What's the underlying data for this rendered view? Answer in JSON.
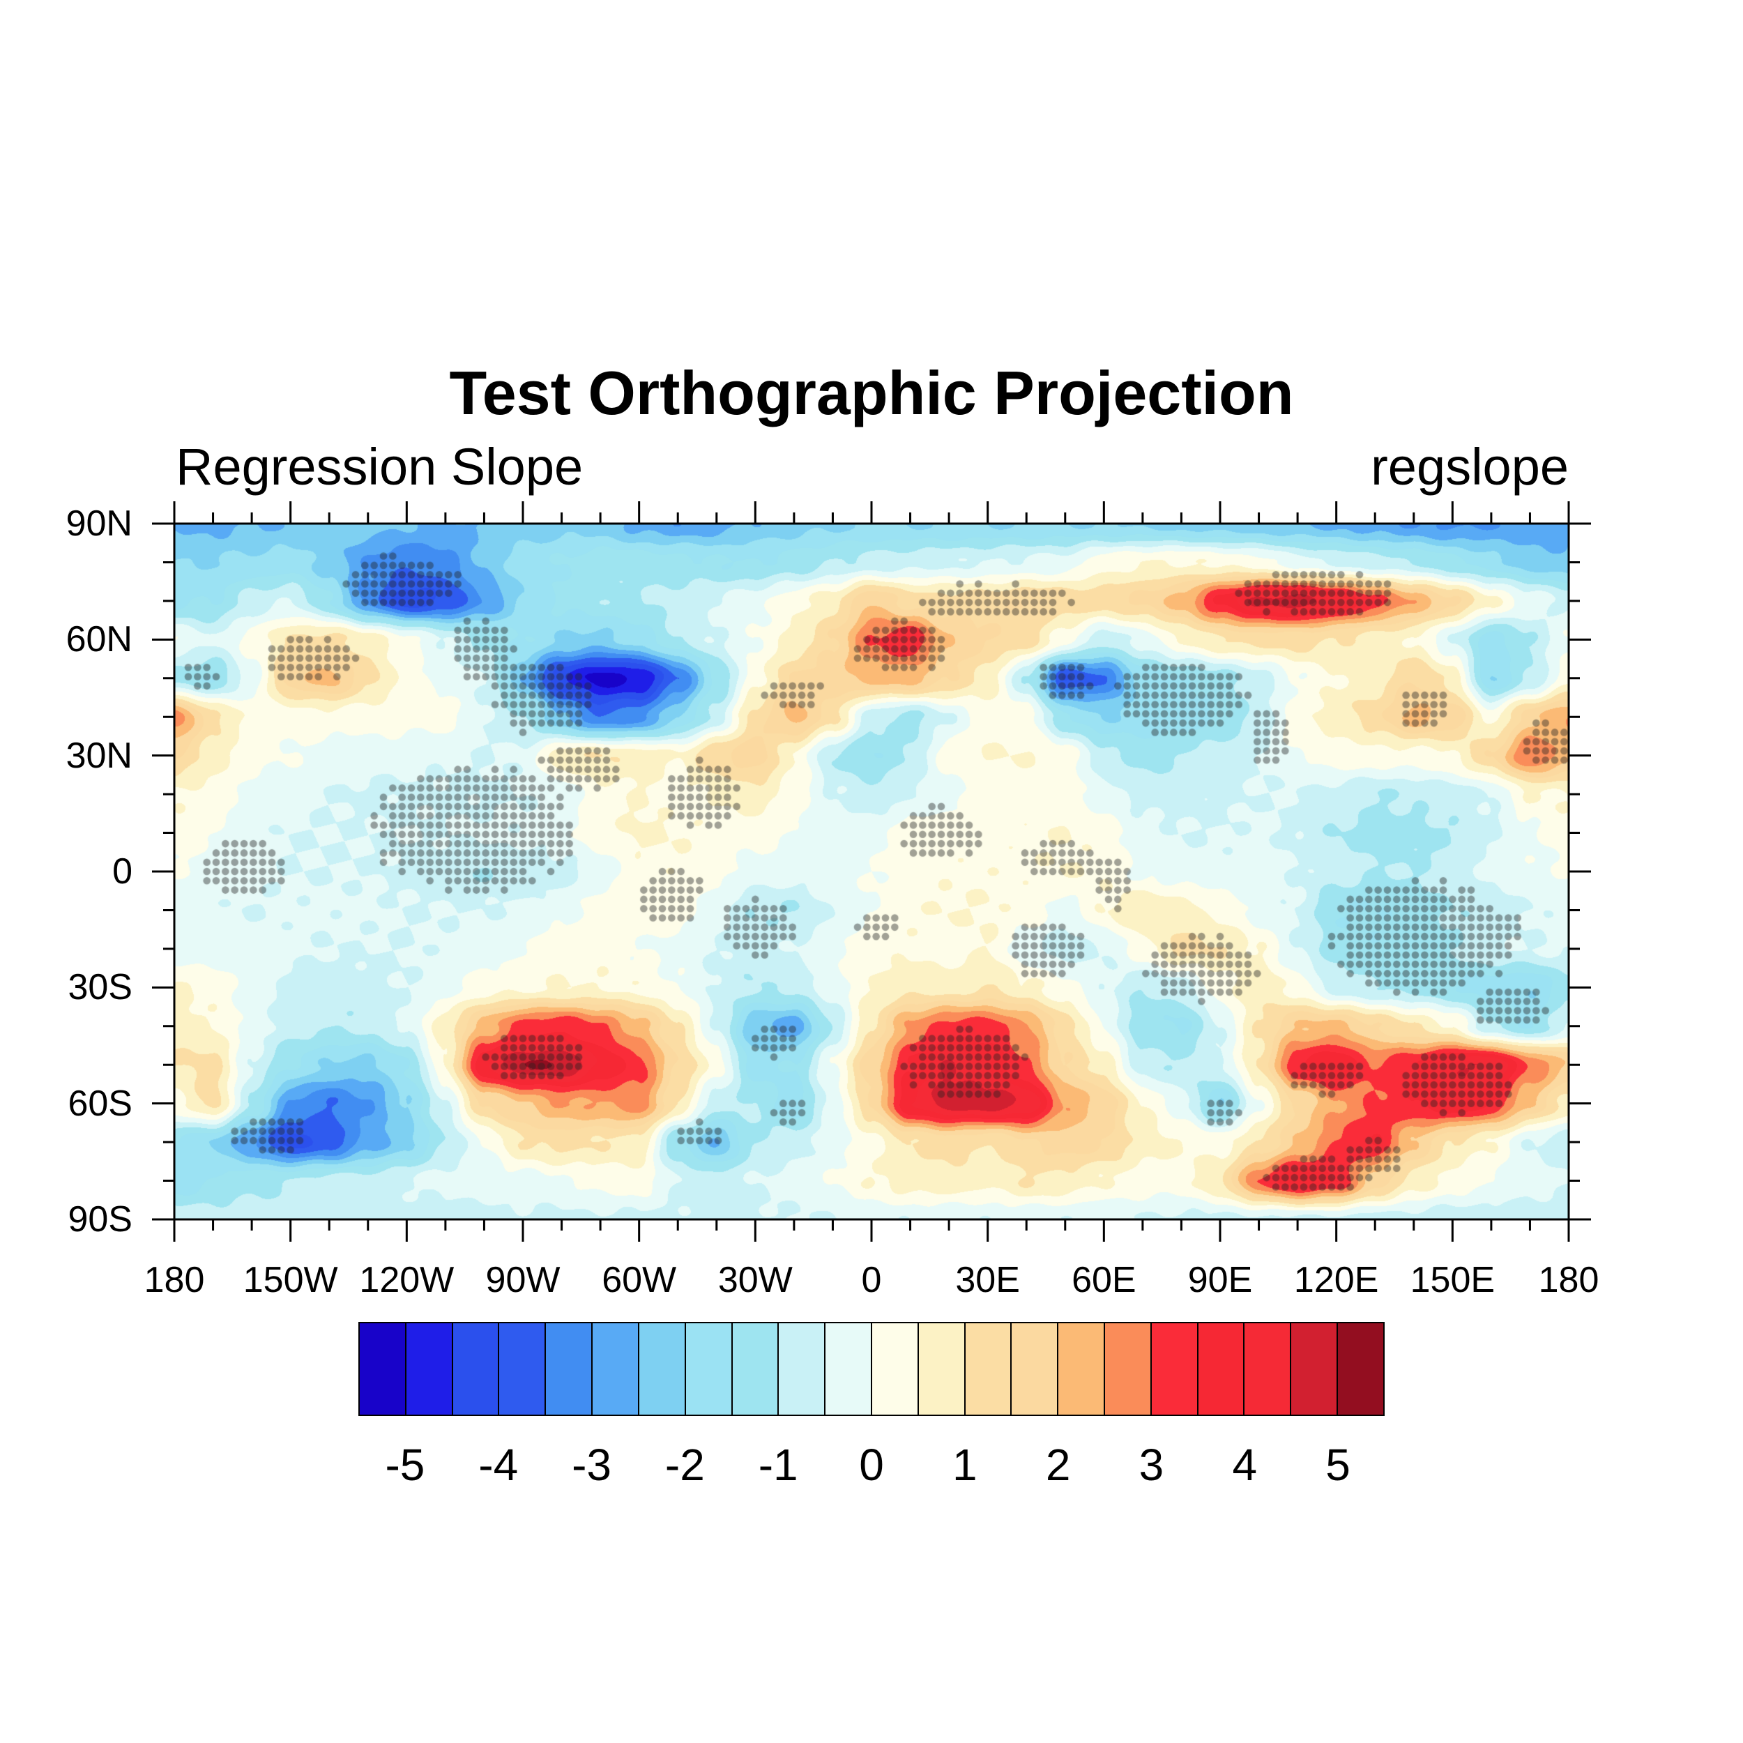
{
  "title": "Test Orthographic Projection",
  "subtitle_left": "Regression Slope",
  "subtitle_right": "regslope",
  "chart_data": {
    "type": "heatmap",
    "title": "Test Orthographic Projection",
    "field_name": "Regression Slope",
    "variable": "regslope",
    "projection_note": "cylindrical lat-lon plot of regression slope with stippling for significance",
    "x_axis": {
      "tick_labels": [
        "180",
        "150W",
        "120W",
        "90W",
        "60W",
        "30W",
        "0",
        "30E",
        "60E",
        "90E",
        "120E",
        "150E",
        "180"
      ],
      "tick_lons": [
        -180,
        -150,
        -120,
        -90,
        -60,
        -30,
        0,
        30,
        60,
        90,
        120,
        150,
        180
      ],
      "minor_step_deg": 10
    },
    "y_axis": {
      "tick_labels": [
        "90N",
        "60N",
        "30N",
        "0",
        "30S",
        "60S",
        "90S"
      ],
      "tick_lats": [
        90,
        60,
        30,
        0,
        -30,
        -60,
        -90
      ],
      "minor_step_deg": 10
    },
    "colorbar": {
      "labels": [
        "-5",
        "-4",
        "-3",
        "-2",
        "-1",
        "0",
        "1",
        "2",
        "3",
        "4",
        "5"
      ],
      "levels": [
        -5,
        -4.5,
        -4,
        -3.5,
        -3,
        -2.5,
        -2,
        -1.5,
        -1,
        -0.5,
        0,
        0.5,
        1,
        1.5,
        2,
        2.5,
        3,
        3.5,
        4,
        4.5,
        5
      ],
      "colors": [
        "#1803C9",
        "#1F1EE8",
        "#2B50ED",
        "#2F5BEF",
        "#418DF2",
        "#58AAF5",
        "#7ED0F2",
        "#9BE2F3",
        "#9EE4F0",
        "#C9F1F6",
        "#E7FAF8",
        "#FEFDE9",
        "#FCF2C5",
        "#FBDDA4",
        "#FBD9A0",
        "#FBBA75",
        "#FA8C59",
        "#FA2C39",
        "#F62834",
        "#F52A36",
        "#D22030",
        "#930E20"
      ]
    },
    "grid": {
      "lons": [
        -180,
        -170,
        -160,
        -150,
        -140,
        -130,
        -120,
        -110,
        -100,
        -90,
        -80,
        -70,
        -60,
        -50,
        -40,
        -30,
        -20,
        -10,
        0,
        10,
        20,
        30,
        40,
        50,
        60,
        70,
        80,
        90,
        100,
        110,
        120,
        130,
        140,
        150,
        160,
        170,
        180
      ],
      "lats": [
        90,
        80,
        70,
        60,
        50,
        40,
        30,
        20,
        10,
        0,
        -10,
        -20,
        -30,
        -40,
        -50,
        -60,
        -70,
        -80,
        -90
      ],
      "values": [
        [
          -2.6,
          -2.6,
          -2.5,
          -2.5,
          -2.3,
          -2.3,
          -2.5,
          -2.6,
          -2.5,
          -2.3,
          -2.2,
          -2.3,
          -2.7,
          -2.9,
          -2.7,
          -2.4,
          -2.2,
          -2.1,
          -2.0,
          -2.0,
          -2.0,
          -2.0,
          -2.0,
          -2.0,
          -2.0,
          -2.1,
          -2.2,
          -2.3,
          -2.4,
          -2.5,
          -2.6,
          -2.8,
          -3.0,
          -3.1,
          -3.0,
          -2.9,
          -2.8
        ],
        [
          -2.0,
          -2.0,
          -1.9,
          -1.8,
          -2.2,
          -3.0,
          -3.4,
          -3.2,
          -2.4,
          -1.8,
          -1.5,
          -1.2,
          -1.2,
          -1.3,
          -1.5,
          -1.5,
          -1.3,
          -1.0,
          -0.8,
          -0.7,
          -0.6,
          -0.5,
          -0.4,
          -0.3,
          0.3,
          0.5,
          0.5,
          0.4,
          0.2,
          -0.3,
          -0.6,
          -0.8,
          -1.0,
          -1.4,
          -1.8,
          -2.2,
          -2.4
        ],
        [
          -1.6,
          -1.5,
          -0.8,
          -0.5,
          -1.5,
          -3.2,
          -4.3,
          -4.0,
          -3.0,
          -2.0,
          -1.4,
          -1.1,
          -1.0,
          -0.8,
          -0.5,
          -0.2,
          0.3,
          0.8,
          2.0,
          1.3,
          1.2,
          1.3,
          1.5,
          1.4,
          1.3,
          1.6,
          2.2,
          3.6,
          4.6,
          4.8,
          4.2,
          3.2,
          2.4,
          1.6,
          0.6,
          -0.2,
          -0.6
        ],
        [
          0.0,
          -0.5,
          0.2,
          1.0,
          1.2,
          0.8,
          0.2,
          -0.5,
          -1.2,
          -1.5,
          -2.0,
          -2.2,
          -1.8,
          -1.0,
          -0.5,
          0.0,
          0.6,
          1.5,
          3.0,
          3.5,
          2.0,
          1.5,
          1.3,
          0.2,
          -0.8,
          -0.3,
          0.5,
          1.0,
          1.2,
          1.2,
          1.0,
          0.8,
          0.5,
          -0.5,
          -1.8,
          -1.0,
          0.0
        ],
        [
          -1.2,
          -1.5,
          -0.3,
          1.8,
          2.2,
          1.2,
          0.3,
          -0.2,
          -0.5,
          -2.5,
          -4.5,
          -5.2,
          -5.0,
          -3.5,
          -1.5,
          0.3,
          1.5,
          1.8,
          2.2,
          2.2,
          1.5,
          0.8,
          -1.0,
          -4.0,
          -3.5,
          -1.8,
          -1.5,
          -1.2,
          -0.8,
          0.0,
          0.5,
          0.8,
          1.5,
          0.8,
          -2.0,
          -1.0,
          0.3
        ],
        [
          2.8,
          1.2,
          0.3,
          0.2,
          0.3,
          0.2,
          0.2,
          0.2,
          -0.5,
          -1.0,
          -2.5,
          -3.5,
          -3.2,
          -2.0,
          -0.8,
          1.2,
          2.2,
          1.2,
          -0.8,
          -1.2,
          -0.5,
          0.3,
          0.3,
          -1.5,
          -2.0,
          -1.8,
          -1.8,
          -1.5,
          -0.8,
          0.3,
          0.8,
          1.3,
          2.2,
          1.8,
          0.3,
          1.8,
          2.5
        ],
        [
          1.5,
          0.8,
          0.2,
          0.0,
          -0.2,
          -0.3,
          -0.3,
          -0.4,
          -0.5,
          -0.4,
          0.8,
          1.0,
          0.8,
          0.5,
          1.5,
          1.8,
          0.5,
          -1.0,
          -1.5,
          -1.0,
          0.3,
          0.5,
          0.5,
          0.3,
          -0.8,
          -1.2,
          -1.0,
          -0.8,
          -0.5,
          0.0,
          0.3,
          0.3,
          0.3,
          0.5,
          1.5,
          3.0,
          2.2
        ],
        [
          0.5,
          0.3,
          -0.2,
          -0.3,
          -0.5,
          -0.6,
          -0.6,
          -0.6,
          -0.6,
          -0.5,
          -0.3,
          0.3,
          0.5,
          0.3,
          0.5,
          0.8,
          0.3,
          -0.5,
          -0.8,
          -0.5,
          -0.2,
          0.2,
          0.2,
          0.2,
          -0.3,
          -0.7,
          -0.7,
          -0.6,
          -0.5,
          -0.5,
          -0.7,
          -1.0,
          -0.9,
          -0.7,
          -0.5,
          0.5,
          0.5
        ],
        [
          0.3,
          0.0,
          -0.3,
          -0.5,
          -0.5,
          -0.5,
          -0.5,
          -0.5,
          -0.4,
          -0.4,
          -0.2,
          0.3,
          0.6,
          0.5,
          0.3,
          0.2,
          0.0,
          -0.3,
          -0.2,
          0.2,
          0.3,
          0.3,
          0.4,
          0.5,
          0.3,
          -0.3,
          -0.5,
          -0.5,
          -0.4,
          -0.6,
          -1.0,
          -1.2,
          -1.2,
          -1.0,
          -0.6,
          -0.1,
          0.3
        ],
        [
          0.0,
          -0.2,
          -0.4,
          -0.5,
          -0.5,
          -0.5,
          -0.6,
          -0.8,
          -1.0,
          -0.9,
          -0.7,
          -0.3,
          0.3,
          0.4,
          0.2,
          -0.2,
          -0.3,
          -0.2,
          0.0,
          0.3,
          0.4,
          0.4,
          0.4,
          0.5,
          0.4,
          -0.1,
          -0.3,
          -0.3,
          -0.3,
          -0.5,
          -0.8,
          -1.0,
          -1.0,
          -0.8,
          -0.4,
          -0.1,
          0.0
        ],
        [
          -0.3,
          -0.4,
          -0.5,
          -0.4,
          -0.4,
          -0.4,
          -0.5,
          -0.5,
          -0.5,
          -0.4,
          -0.2,
          0.3,
          0.4,
          0.2,
          -0.3,
          -1.0,
          -1.0,
          -0.5,
          0.0,
          0.4,
          0.5,
          0.5,
          0.3,
          -0.3,
          0.5,
          1.0,
          0.8,
          0.3,
          -0.2,
          -0.5,
          -1.5,
          -1.5,
          -1.2,
          -1.0,
          -0.7,
          -0.5,
          -0.3
        ],
        [
          -0.4,
          -0.3,
          -0.3,
          -0.4,
          -0.5,
          -0.5,
          -0.5,
          -0.4,
          -0.3,
          0.0,
          0.3,
          0.3,
          0.0,
          -0.2,
          -0.5,
          -0.8,
          -0.5,
          0.0,
          0.3,
          0.4,
          0.3,
          0.5,
          -0.3,
          -0.8,
          -0.5,
          0.3,
          1.2,
          1.0,
          0.5,
          -0.5,
          -1.2,
          -1.4,
          -1.3,
          -1.0,
          -0.6,
          -0.5,
          -0.4
        ],
        [
          0.6,
          0.3,
          -0.2,
          -0.6,
          -0.8,
          -0.7,
          -0.5,
          -0.2,
          0.3,
          0.4,
          0.5,
          0.5,
          0.4,
          0.0,
          -0.6,
          -1.0,
          -0.8,
          -0.2,
          0.5,
          0.8,
          0.8,
          1.0,
          0.6,
          0.2,
          -0.4,
          -1.0,
          -0.8,
          0.3,
          0.8,
          0.3,
          -0.8,
          -1.0,
          -1.2,
          -1.5,
          -1.8,
          -2.0,
          -1.2
        ],
        [
          0.8,
          0.5,
          -0.2,
          -0.8,
          -1.0,
          -0.9,
          -0.4,
          0.8,
          2.2,
          3.2,
          3.4,
          3.0,
          2.2,
          1.0,
          -0.5,
          -2.4,
          -2.8,
          -1.0,
          1.0,
          2.6,
          3.2,
          3.2,
          2.6,
          1.2,
          0.0,
          -1.4,
          -1.6,
          -0.5,
          1.0,
          2.0,
          2.2,
          1.5,
          1.0,
          0.5,
          -1.0,
          -1.5,
          -0.5
        ],
        [
          1.0,
          1.2,
          -0.5,
          -1.5,
          -2.0,
          -2.2,
          -1.5,
          0.5,
          4.0,
          5.0,
          5.0,
          4.0,
          3.2,
          1.5,
          0.3,
          -1.8,
          -1.5,
          0.0,
          1.8,
          3.5,
          4.5,
          4.0,
          3.0,
          1.5,
          0.8,
          -0.8,
          -1.0,
          -0.5,
          1.0,
          3.5,
          4.0,
          3.0,
          3.5,
          4.5,
          4.5,
          3.0,
          2.0
        ],
        [
          0.3,
          1.2,
          -1.0,
          -3.0,
          -3.5,
          -3.0,
          -2.0,
          -0.5,
          1.5,
          2.0,
          2.5,
          2.5,
          2.8,
          1.0,
          -0.8,
          -1.0,
          -1.8,
          -0.3,
          1.5,
          4.0,
          4.8,
          4.8,
          4.5,
          2.5,
          1.8,
          0.5,
          -0.3,
          -2.0,
          0.0,
          1.5,
          2.5,
          3.0,
          3.5,
          4.0,
          3.5,
          2.0,
          0.8
        ],
        [
          -1.5,
          -2.0,
          -3.0,
          -4.2,
          -3.8,
          -2.8,
          -2.2,
          -1.0,
          0.0,
          1.0,
          1.2,
          1.0,
          0.8,
          -1.5,
          -2.5,
          -1.0,
          -0.8,
          -0.3,
          0.3,
          1.0,
          1.2,
          1.0,
          1.5,
          1.8,
          1.5,
          0.8,
          0.5,
          0.3,
          1.0,
          2.0,
          3.0,
          3.5,
          2.0,
          1.0,
          0.5,
          -0.5,
          -0.8
        ],
        [
          -1.8,
          -1.5,
          -1.2,
          -1.0,
          -0.8,
          -0.8,
          -0.5,
          -0.3,
          -0.3,
          -0.2,
          0.0,
          0.2,
          0.3,
          -0.5,
          -0.8,
          -0.5,
          -0.3,
          0.0,
          0.5,
          0.8,
          0.8,
          0.6,
          1.0,
          0.8,
          0.5,
          0.3,
          0.3,
          1.0,
          3.0,
          4.0,
          3.5,
          1.8,
          0.8,
          0.3,
          0.0,
          -0.3,
          -0.5
        ],
        [
          -0.7,
          -0.7,
          -0.7,
          -0.7,
          -0.7,
          -0.7,
          -0.7,
          -0.7,
          -0.7,
          -0.6,
          -0.6,
          -0.6,
          -0.6,
          -0.6,
          -0.6,
          -0.6,
          -0.5,
          -0.5,
          -0.4,
          -0.4,
          -0.4,
          -0.4,
          -0.4,
          -0.4,
          -0.5,
          -0.5,
          -0.6,
          -0.6,
          -0.6,
          -0.6,
          -0.6,
          -0.7,
          -0.7,
          -0.8,
          -0.8,
          -0.8,
          -0.8
        ]
      ]
    },
    "stipple_regions": [
      {
        "lon": -122,
        "lat": 75,
        "rlon": 16,
        "rlat": 7
      },
      {
        "lon": -100,
        "lat": 57,
        "rlon": 9,
        "rlat": 9
      },
      {
        "lon": -85,
        "lat": 45,
        "rlon": 13,
        "rlat": 10
      },
      {
        "lon": -145,
        "lat": 55,
        "rlon": 12,
        "rlat": 6
      },
      {
        "lon": -173,
        "lat": 51,
        "rlon": 5,
        "rlat": 4
      },
      {
        "lon": -75,
        "lat": 27,
        "rlon": 11,
        "rlat": 6
      },
      {
        "lon": -103,
        "lat": 11,
        "rlon": 27,
        "rlat": 17
      },
      {
        "lon": -162,
        "lat": 1,
        "rlon": 12,
        "rlat": 7
      },
      {
        "lon": -52,
        "lat": -6,
        "rlon": 9,
        "rlat": 8
      },
      {
        "lon": -30,
        "lat": -15,
        "rlon": 10,
        "rlat": 8
      },
      {
        "lon": 2,
        "lat": -14,
        "rlon": 6,
        "rlat": 4
      },
      {
        "lon": -44,
        "lat": 20,
        "rlon": 10,
        "rlat": 9
      },
      {
        "lon": -20,
        "lat": 46,
        "rlon": 8,
        "rlat": 5
      },
      {
        "lon": 7,
        "lat": 58,
        "rlon": 13,
        "rlat": 7
      },
      {
        "lon": 32,
        "lat": 70,
        "rlon": 20,
        "rlat": 5
      },
      {
        "lon": 115,
        "lat": 72,
        "rlon": 22,
        "rlat": 6
      },
      {
        "lon": 80,
        "lat": 45,
        "rlon": 18,
        "rlat": 10
      },
      {
        "lon": 50,
        "lat": 50,
        "rlon": 7,
        "rlat": 6
      },
      {
        "lon": 103,
        "lat": 35,
        "rlon": 6,
        "rlat": 8
      },
      {
        "lon": 143,
        "lat": 42,
        "rlon": 8,
        "rlat": 5
      },
      {
        "lon": 174,
        "lat": 33,
        "rlon": 7,
        "rlat": 6
      },
      {
        "lon": 143,
        "lat": -17,
        "rlon": 26,
        "rlat": 15
      },
      {
        "lon": 165,
        "lat": -35,
        "rlon": 10,
        "rlat": 6
      },
      {
        "lon": 85,
        "lat": -25,
        "rlon": 15,
        "rlat": 9
      },
      {
        "lon": 62,
        "lat": -3,
        "rlon": 5,
        "rlat": 7
      },
      {
        "lon": 18,
        "lat": 10,
        "rlon": 11,
        "rlat": 7
      },
      {
        "lon": 48,
        "lat": 3,
        "rlon": 11,
        "rlat": 5
      },
      {
        "lon": 45,
        "lat": -20,
        "rlon": 10,
        "rlat": 8
      },
      {
        "lon": -86,
        "lat": -48,
        "rlon": 14,
        "rlat": 7
      },
      {
        "lon": 25,
        "lat": -50,
        "rlon": 17,
        "rlat": 10
      },
      {
        "lon": 150,
        "lat": -55,
        "rlon": 16,
        "rlat": 8
      },
      {
        "lon": 118,
        "lat": -53,
        "rlon": 10,
        "rlat": 5
      },
      {
        "lon": 115,
        "lat": -79,
        "rlon": 14,
        "rlat": 5
      },
      {
        "lon": 130,
        "lat": -74,
        "rlon": 8,
        "rlat": 5
      },
      {
        "lon": -25,
        "lat": -44,
        "rlon": 7,
        "rlat": 5
      },
      {
        "lon": -155,
        "lat": -68,
        "rlon": 10,
        "rlat": 5
      },
      {
        "lon": -45,
        "lat": -68,
        "rlon": 6,
        "rlat": 4
      },
      {
        "lon": -21,
        "lat": -62,
        "rlon": 5,
        "rlat": 4
      },
      {
        "lon": 90,
        "lat": -62,
        "rlon": 5,
        "rlat": 4
      }
    ],
    "stipple_style": {
      "pitch_deg": 2.4,
      "dot_radius_px": 5.3,
      "color": "rgba(34,34,34,0.42)"
    }
  }
}
